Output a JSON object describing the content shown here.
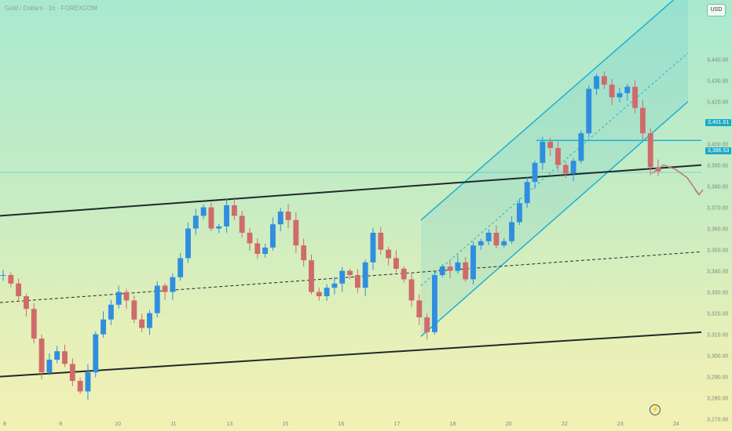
{
  "header": {
    "legend": "Gold / Dollars · 1h · FOREXCOM",
    "currency": "USD"
  },
  "price_tags": {
    "level_label": "3,401.61",
    "current_label": "3,386.53"
  },
  "chart_data": {
    "type": "candlestick",
    "ylim": [
      3268,
      3468
    ],
    "y_ticks": [
      "3,440.00",
      "3,430.00",
      "3,420.00",
      "3,410.00",
      "3,400.00",
      "3,390.00",
      "3,380.00",
      "3,370.00",
      "3,360.00",
      "3,350.00",
      "3,340.00",
      "3,330.00",
      "3,320.00",
      "3,310.00",
      "3,300.00",
      "3,290.00",
      "3,280.00",
      "3,270.00"
    ],
    "x_ticks": [
      "8",
      "9",
      "10",
      "11",
      "13",
      "15",
      "16",
      "17",
      "18",
      "20",
      "22",
      "23",
      "24"
    ],
    "close_path": [
      3338,
      3334,
      3328,
      3322,
      3308,
      3292,
      3298,
      3302,
      3296,
      3288,
      3283,
      3292,
      3310,
      3317,
      3324,
      3330,
      3326,
      3317,
      3313,
      3320,
      3333,
      3330,
      3337,
      3346,
      3360,
      3366,
      3370,
      3360,
      3361,
      3371,
      3366,
      3358,
      3353,
      3348,
      3351,
      3362,
      3368,
      3364,
      3352,
      3345,
      3330,
      3328,
      3332,
      3334,
      3340,
      3338,
      3332,
      3344,
      3358,
      3350,
      3346,
      3341,
      3336,
      3326,
      3318,
      3311,
      3338,
      3342,
      3340,
      3344,
      3336,
      3352,
      3354,
      3358,
      3352,
      3354,
      3363,
      3372,
      3382,
      3391,
      3401,
      3398,
      3390,
      3386,
      3392,
      3405,
      3426,
      3432,
      3428,
      3422,
      3424,
      3427,
      3417,
      3405,
      3389,
      3387
    ],
    "line_series": [
      {
        "name": "",
        "values": [
          3366,
          3390
        ]
      },
      {
        "name": "",
        "values": [
          3290,
          3311
        ]
      },
      {
        "name": "",
        "values": [
          3325,
          3349
        ]
      }
    ],
    "channel_series": [
      {
        "name": "",
        "values": [
          3364,
          3474
        ]
      },
      {
        "name": "",
        "values": [
          3333,
          3443
        ]
      },
      {
        "name": "",
        "values": [
          3309,
          3420
        ]
      }
    ],
    "levels": [
      3401.61,
      3386.53
    ],
    "projection": [
      3386,
      3390,
      3388,
      3384,
      3376
    ]
  },
  "colors": {
    "up": "#2f8ee0",
    "down": "#cf6b6b",
    "channel": "#20b0d2",
    "trend": "#1f2a2c",
    "arrow": "#b67a7a"
  }
}
